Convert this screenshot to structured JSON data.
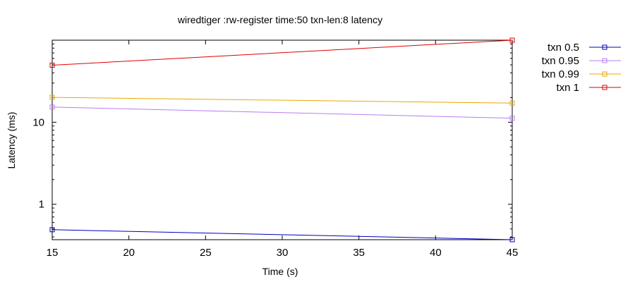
{
  "chart_data": {
    "type": "line",
    "title": "wiredtiger :rw-register time:50 txn-len:8 latency",
    "xlabel": "Time (s)",
    "ylabel": "Latency (ms)",
    "x_scale": "linear",
    "y_scale": "log",
    "xlim": [
      15,
      45
    ],
    "ylim": [
      0.37,
      100
    ],
    "x_ticks": [
      15,
      20,
      25,
      30,
      35,
      40,
      45
    ],
    "y_ticks": [
      1,
      10
    ],
    "legend_position": "outside-right",
    "grid": false,
    "series": [
      {
        "name": "txn 0.5",
        "color": "#0000c0",
        "marker": "square-open",
        "x": [
          15,
          45
        ],
        "y": [
          0.49,
          0.37
        ]
      },
      {
        "name": "txn 0.95",
        "color": "#b57ef0",
        "marker": "square-open",
        "x": [
          15,
          45
        ],
        "y": [
          15.3,
          11.2
        ]
      },
      {
        "name": "txn 0.99",
        "color": "#e8a800",
        "marker": "square-open",
        "x": [
          15,
          45
        ],
        "y": [
          20.1,
          17.1
        ]
      },
      {
        "name": "txn 1",
        "color": "#e00000",
        "marker": "square-open",
        "x": [
          15,
          45
        ],
        "y": [
          49.5,
          100
        ]
      }
    ]
  }
}
